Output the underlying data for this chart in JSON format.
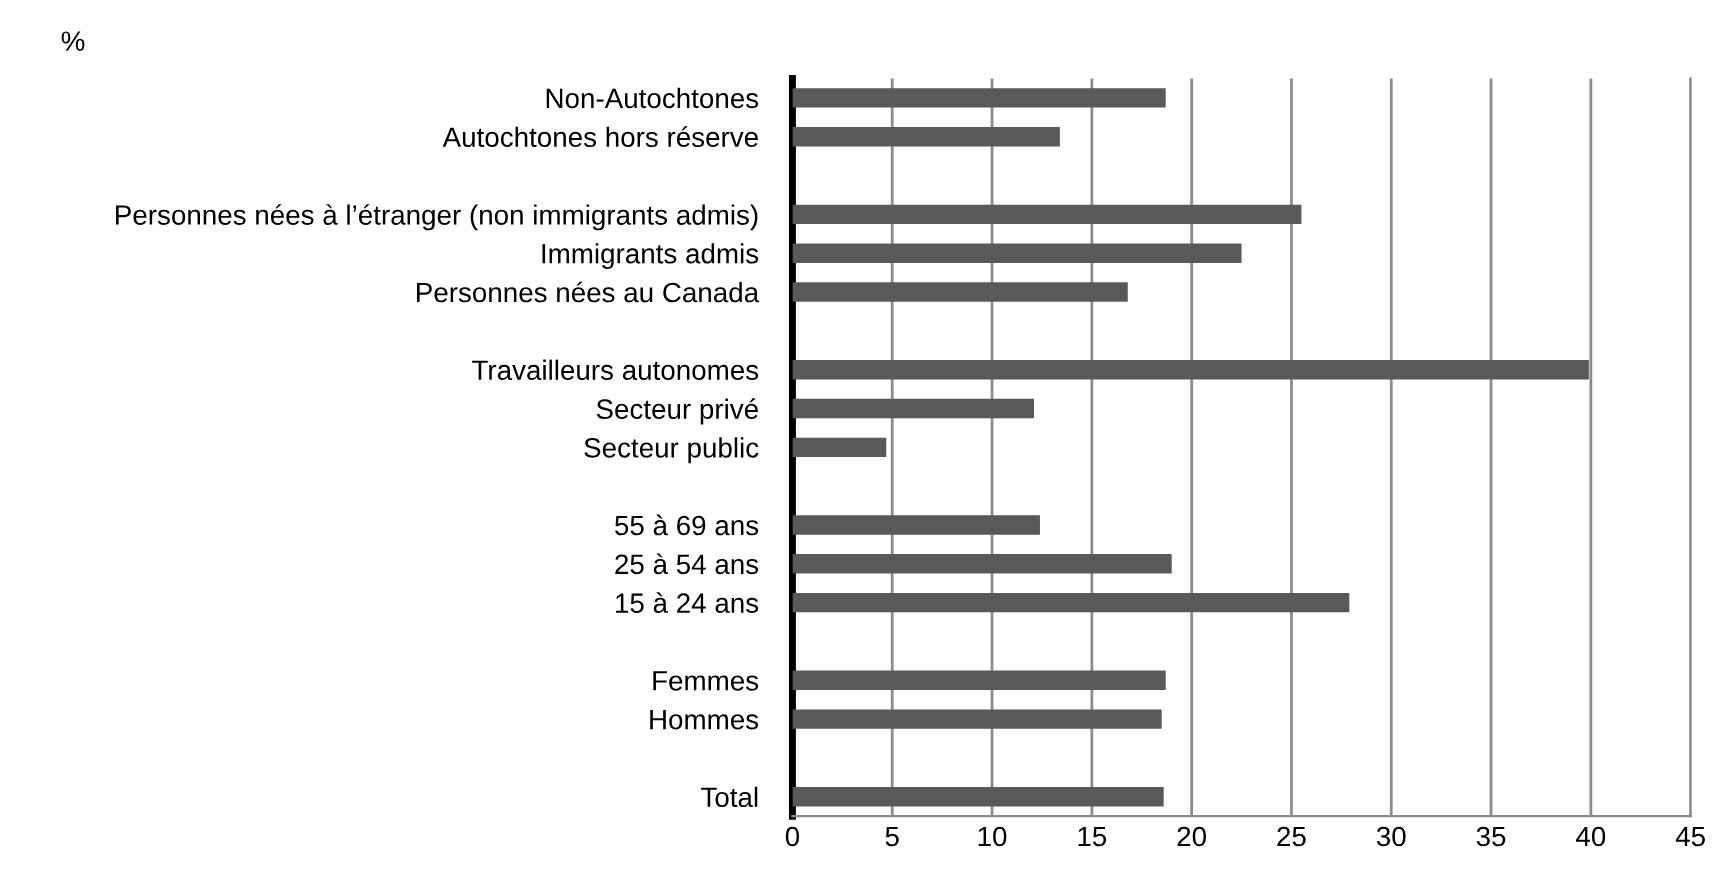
{
  "chart_data": {
    "type": "bar",
    "orientation": "horizontal",
    "title": "%",
    "categories": [
      "Non-Autochtones",
      "Autochtones hors réserve",
      null,
      "Personnes nées à l’étranger (non immigrants admis)",
      "Immigrants admis",
      "Personnes nées au Canada",
      null,
      "Travailleurs autonomes",
      "Secteur privé",
      "Secteur public",
      null,
      "55 à 69 ans",
      "25 à 54 ans",
      "15 à 24 ans",
      null,
      "Femmes",
      "Hommes",
      null,
      "Total"
    ],
    "values": [
      18.7,
      13.4,
      null,
      25.5,
      22.5,
      16.8,
      null,
      39.9,
      12.1,
      4.7,
      null,
      12.4,
      19.0,
      27.9,
      null,
      18.7,
      18.5,
      null,
      18.6
    ],
    "color": "#595959",
    "xlim": [
      0,
      45
    ],
    "xticks": [
      0,
      5,
      10,
      15,
      20,
      25,
      30,
      35,
      40,
      45
    ],
    "grid": "x",
    "legend": false
  }
}
